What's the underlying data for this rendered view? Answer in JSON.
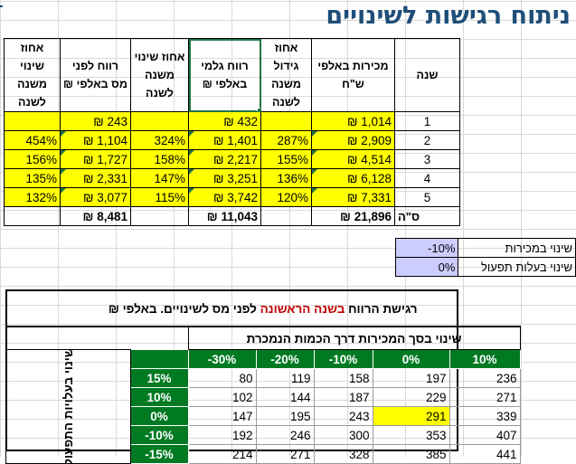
{
  "title": "ניתוח רגישות לשינויים",
  "main_table": {
    "headers": {
      "year": "שנה",
      "sales": "מכירות באלפי ש\"ח",
      "sales_growth": "אחוז גידול משנה לשנה",
      "gross_profit": "רווח גלמי באלפי ₪",
      "gp_change": "אחוז שינוי משנה לשנה",
      "pretax_profit": "רווח לפני מס באלפי ₪",
      "pretax_change": "אחוז שינוי משנה לשנה"
    },
    "rows": [
      {
        "year": "1",
        "sales": "₪ 1,014",
        "sales_growth": "",
        "gross_profit": "₪ 432",
        "gp_change": "",
        "pretax_profit": "₪ 243",
        "pretax_change": ""
      },
      {
        "year": "2",
        "sales": "₪ 2,909",
        "sales_growth": "287%",
        "gross_profit": "₪ 1,401",
        "gp_change": "324%",
        "pretax_profit": "₪ 1,104",
        "pretax_change": "454%"
      },
      {
        "year": "3",
        "sales": "₪ 4,514",
        "sales_growth": "155%",
        "gross_profit": "₪ 2,217",
        "gp_change": "158%",
        "pretax_profit": "₪ 1,727",
        "pretax_change": "156%"
      },
      {
        "year": "4",
        "sales": "₪ 6,128",
        "sales_growth": "136%",
        "gross_profit": "₪ 3,251",
        "gp_change": "147%",
        "pretax_profit": "₪ 2,331",
        "pretax_change": "135%"
      },
      {
        "year": "5",
        "sales": "₪ 7,331",
        "sales_growth": "120%",
        "gross_profit": "₪ 3,742",
        "gp_change": "115%",
        "pretax_profit": "₪ 3,077",
        "pretax_change": "132%"
      }
    ],
    "total": {
      "label": "ס\"ה",
      "sales": "₪ 21,896",
      "gross_profit": "₪ 11,043",
      "pretax_profit": "₪ 8,481"
    }
  },
  "params": [
    {
      "label": "שינוי במכירות",
      "value": "-10%"
    },
    {
      "label": "שינוי בעלות תפעול",
      "value": "0%"
    }
  ],
  "sensitivity": {
    "title_prefix": "רגישת הרווח",
    "title_highlight": "בשנה הראשונה",
    "title_suffix": "לפני מס לשינויים. באלפי ₪",
    "subtitle": "שינוי בסך המכירות דרך הכמות הנמכרת",
    "col_headers": [
      "-30%",
      "-20%",
      "-10%",
      "0%",
      "10%"
    ],
    "row_label": "שינוי בעלויות התפעול",
    "rows": [
      {
        "pct": "15%",
        "values": [
          "80",
          "119",
          "158",
          "197",
          "236"
        ]
      },
      {
        "pct": "10%",
        "values": [
          "102",
          "144",
          "187",
          "229",
          "271"
        ]
      },
      {
        "pct": "0%",
        "values": [
          "147",
          "195",
          "243",
          "291",
          "339"
        ]
      },
      {
        "pct": "-10%",
        "values": [
          "192",
          "246",
          "300",
          "353",
          "407"
        ]
      },
      {
        "pct": "-15%",
        "values": [
          "214",
          "271",
          "328",
          "385",
          "441"
        ]
      }
    ]
  }
}
